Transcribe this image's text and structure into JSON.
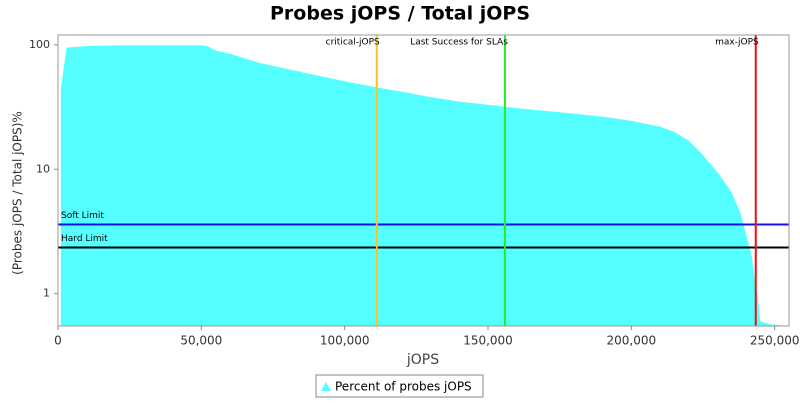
{
  "chart_data": {
    "type": "area",
    "title": "Probes jOPS / Total jOPS",
    "x_label": "jOPS",
    "y_label": "(Probes jOPS / Total jOPS)%",
    "x": [
      1000,
      3000,
      10000,
      20000,
      50000,
      52000,
      55000,
      60000,
      65000,
      70000,
      80000,
      90000,
      100000,
      110000,
      120000,
      130000,
      140000,
      150000,
      160000,
      170000,
      180000,
      190000,
      200000,
      210000,
      215000,
      220000,
      225000,
      230000,
      235000,
      238000,
      240000,
      242000,
      243000,
      244000,
      245000,
      248000,
      255000
    ],
    "series": [
      {
        "name": "Percent of probes jOPS",
        "color": "#55ffff",
        "values": [
          45,
          95,
          98,
          99,
          99,
          98,
          90,
          85,
          78,
          72,
          64,
          57,
          51,
          46,
          42,
          38,
          35,
          33,
          31,
          29.5,
          28,
          26.5,
          24.5,
          22,
          20,
          17,
          13,
          9.5,
          6.5,
          4.5,
          3,
          2,
          1.3,
          1,
          0.6,
          0.57,
          0.55
        ]
      }
    ],
    "xlim": [
      0,
      255000
    ],
    "ylim": [
      0.55,
      120
    ],
    "y_scale": "log",
    "grid": false,
    "xticks": [
      0,
      {
        "value": 50000,
        "label": "50,000"
      },
      {
        "value": 100000,
        "label": "100,000"
      },
      {
        "value": 150000,
        "label": "150,000"
      },
      {
        "value": 200000,
        "label": "200,000"
      },
      {
        "value": 250000,
        "label": "250,000"
      }
    ],
    "yticks": [
      1,
      10,
      100
    ],
    "vlines": [
      {
        "label": "critical-jOPS",
        "value": 111200,
        "color": "#ffc020"
      },
      {
        "label": "Last Success for SLAs",
        "value": 155900,
        "color": "#22ee22"
      },
      {
        "label": "max-jOPS",
        "value": 243400,
        "color": "#ee1111"
      }
    ],
    "hlines": [
      {
        "label": "Soft Limit",
        "value": 3.6,
        "color": "#1111ee"
      },
      {
        "label": "Hard Limit",
        "value": 2.35,
        "color": "#000000"
      }
    ]
  }
}
